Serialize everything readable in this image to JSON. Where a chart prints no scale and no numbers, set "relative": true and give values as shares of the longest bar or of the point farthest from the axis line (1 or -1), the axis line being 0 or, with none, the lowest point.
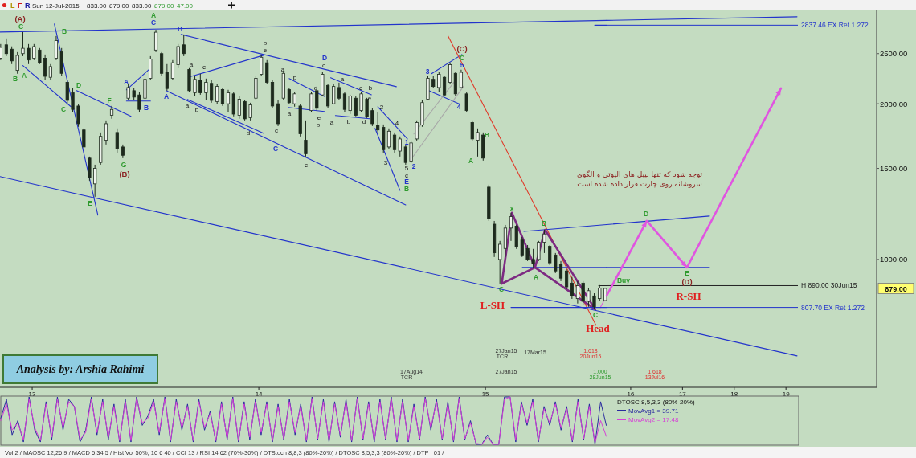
{
  "chart_data": [
    {
      "type": "candlestick",
      "log": "y",
      "xlim": [
        12.858,
        15.535
      ],
      "ylim": [
        566,
        3030
      ],
      "tick_labels": "x",
      "xticks": [
        13,
        14,
        15
      ],
      "x": [
        12.861,
        12.886,
        12.91,
        12.935,
        12.959,
        12.984,
        13.008,
        13.033,
        13.057,
        13.081,
        13.106,
        13.13,
        13.155,
        13.179,
        13.204,
        13.228,
        13.253,
        13.277,
        13.302,
        13.326,
        13.351,
        13.375,
        13.4,
        13.424,
        13.449,
        13.473,
        13.498,
        13.522,
        13.546,
        13.571,
        13.595,
        13.62,
        13.644,
        13.669,
        13.693,
        13.718,
        13.742,
        13.767,
        13.791,
        13.816,
        13.84,
        13.865,
        13.889,
        13.914,
        13.938,
        13.963,
        13.987,
        14.011,
        14.036,
        14.06,
        14.085,
        14.109,
        14.134,
        14.158,
        14.183,
        14.207,
        14.232,
        14.256,
        14.281,
        14.305,
        14.33,
        14.354,
        14.379,
        14.403,
        14.428,
        14.452,
        14.477,
        14.501,
        14.525,
        14.55,
        14.574,
        14.599,
        14.623,
        14.648,
        14.672,
        14.697,
        14.721,
        14.746,
        14.77,
        14.795,
        14.819,
        14.844,
        14.868,
        14.893,
        14.917,
        14.942,
        14.966,
        14.99,
        15.015,
        15.039,
        15.064,
        15.088,
        15.113,
        15.137,
        15.162,
        15.186,
        15.211,
        15.235,
        15.26,
        15.284,
        15.309,
        15.333,
        15.358,
        15.382,
        15.407,
        15.431,
        15.455,
        15.48,
        15.504,
        15.529
      ],
      "ohlc": [
        [
          2450,
          2609,
          2429,
          2570
        ],
        [
          2600,
          2675,
          2472,
          2500
        ],
        [
          2550,
          2582,
          2386,
          2420
        ],
        [
          2320,
          2517,
          2286,
          2480
        ],
        [
          2500,
          2752,
          2472,
          2560
        ],
        [
          2560,
          2609,
          2386,
          2430
        ],
        [
          2450,
          2609,
          2429,
          2580
        ],
        [
          2540,
          2563,
          2386,
          2400
        ],
        [
          2450,
          2490,
          2221,
          2260
        ],
        [
          2250,
          2386,
          2221,
          2360
        ],
        [
          2450,
          2704,
          2429,
          2650
        ],
        [
          2520,
          2563,
          2261,
          2290
        ],
        [
          2200,
          2221,
          1995,
          2030
        ],
        [
          2100,
          2143,
          1925,
          1950
        ],
        [
          1980,
          1995,
          1805,
          1830
        ],
        [
          1780,
          1792,
          1638,
          1650
        ],
        [
          1570,
          1581,
          1420,
          1440
        ],
        [
          1400,
          1525,
          1322,
          1500
        ],
        [
          1540,
          1760,
          1525,
          1730
        ],
        [
          1700,
          1857,
          1668,
          1830
        ],
        [
          1900,
          1981,
          1871,
          1950
        ],
        [
          1760,
          1792,
          1609,
          1640
        ],
        [
          1650,
          1668,
          1570,
          1590
        ],
        [
          2050,
          2182,
          2031,
          2150
        ],
        [
          2120,
          2143,
          2031,
          2060
        ],
        [
          2080,
          2105,
          1925,
          1950
        ],
        [
          2050,
          2261,
          2031,
          2230
        ],
        [
          2240,
          2472,
          2221,
          2440
        ],
        [
          2540,
          2780,
          2517,
          2750
        ],
        [
          2500,
          2517,
          2261,
          2290
        ],
        [
          2300,
          2386,
          2120,
          2140
        ],
        [
          2240,
          2429,
          2221,
          2400
        ],
        [
          2380,
          2609,
          2344,
          2580
        ],
        [
          2600,
          2723,
          2472,
          2500
        ],
        [
          2330,
          2344,
          2105,
          2120
        ],
        [
          2100,
          2261,
          2067,
          2230
        ],
        [
          2220,
          2286,
          2082,
          2100
        ],
        [
          2100,
          2237,
          2031,
          2200
        ],
        [
          2190,
          2221,
          2009,
          2030
        ],
        [
          2020,
          2182,
          1995,
          2160
        ],
        [
          2130,
          2143,
          1981,
          2000
        ],
        [
          2000,
          2128,
          1925,
          2100
        ],
        [
          2090,
          2105,
          1891,
          1910
        ],
        [
          1900,
          2067,
          1871,
          2040
        ],
        [
          2020,
          2031,
          1857,
          1870
        ],
        [
          1880,
          2009,
          1857,
          1990
        ],
        [
          2050,
          2261,
          2031,
          2240
        ],
        [
          2280,
          2490,
          2261,
          2460
        ],
        [
          2400,
          2429,
          2182,
          2200
        ],
        [
          2200,
          2221,
          1960,
          1980
        ],
        [
          2000,
          2031,
          1811,
          1830
        ],
        [
          2050,
          2319,
          2031,
          2290
        ],
        [
          2130,
          2143,
          1995,
          2010
        ],
        [
          2000,
          2105,
          1974,
          2090
        ],
        [
          1980,
          1995,
          1729,
          1750
        ],
        [
          1700,
          1857,
          1581,
          1600
        ],
        [
          1940,
          2105,
          1925,
          2090
        ],
        [
          2120,
          2143,
          1939,
          1960
        ],
        [
          2080,
          2302,
          2067,
          2280
        ],
        [
          2170,
          2182,
          1960,
          1980
        ],
        [
          2000,
          2182,
          1995,
          2160
        ],
        [
          2150,
          2197,
          2031,
          2050
        ],
        [
          2090,
          2105,
          1925,
          1950
        ],
        [
          1940,
          2082,
          1911,
          2070
        ],
        [
          2050,
          2067,
          1891,
          1900
        ],
        [
          1940,
          2105,
          1925,
          2090
        ],
        [
          2040,
          2053,
          1877,
          1890
        ],
        [
          1940,
          1960,
          1811,
          1830
        ],
        [
          1820,
          1925,
          1760,
          1780
        ],
        [
          1800,
          1824,
          1609,
          1630
        ],
        [
          1650,
          1792,
          1638,
          1770
        ],
        [
          1740,
          1760,
          1609,
          1630
        ],
        [
          1620,
          1729,
          1581,
          1710
        ],
        [
          1650,
          1668,
          1525,
          1540
        ],
        [
          1550,
          1698,
          1536,
          1680
        ],
        [
          1710,
          1857,
          1698,
          1840
        ],
        [
          1820,
          2031,
          1805,
          2010
        ],
        [
          2040,
          2261,
          2031,
          2240
        ],
        [
          2230,
          2261,
          2143,
          2160
        ],
        [
          2150,
          2302,
          2105,
          2280
        ],
        [
          2250,
          2261,
          2067,
          2080
        ],
        [
          2200,
          2403,
          2182,
          2380
        ],
        [
          2290,
          2302,
          2067,
          2090
        ],
        [
          2150,
          2327,
          2143,
          2300
        ],
        [
          2090,
          2105,
          1925,
          1940
        ],
        [
          1840,
          1857,
          1698,
          1710
        ],
        [
          1700,
          1792,
          1581,
          1760
        ],
        [
          1740,
          1760,
          1553,
          1570
        ],
        [
          1380,
          1395,
          1187,
          1200
        ],
        [
          1170,
          1187,
          1011,
          1030
        ],
        [
          1000,
          1086,
          898,
          1070
        ],
        [
          1050,
          1166,
          1011,
          1150
        ],
        [
          1150,
          1231,
          1086,
          1210
        ],
        [
          1160,
          1166,
          1048,
          1060
        ],
        [
          1090,
          1105,
          1011,
          1020
        ],
        [
          1050,
          1066,
          993,
          1000
        ],
        [
          1000,
          1048,
          965,
          980
        ],
        [
          1000,
          1086,
          993,
          1080
        ],
        [
          1080,
          1141,
          1029,
          1120
        ],
        [
          1060,
          1066,
          975,
          985
        ],
        [
          1020,
          1029,
          941,
          950
        ],
        [
          980,
          993,
          908,
          920
        ],
        [
          950,
          958,
          876,
          885
        ],
        [
          900,
          925,
          839,
          850
        ],
        [
          840,
          908,
          822,
          890
        ],
        [
          900,
          908,
          816,
          830
        ],
        [
          830,
          882,
          810,
          870
        ],
        [
          850,
          860,
          801,
          810
        ],
        [
          840,
          892,
          830,
          880
        ],
        [
          833,
          879,
          833,
          879
        ]
      ],
      "series": [
        {
          "type": "line",
          "color": "#2233cc",
          "x": [
            12.858,
            15.535
          ],
          "values": [
            2752,
            2899
          ]
        },
        {
          "type": "line",
          "color": "#2233cc",
          "x": [
            13.098,
            13.29
          ],
          "values": [
            2853,
            1218
          ]
        },
        {
          "type": "line",
          "color": "#2233cc",
          "x": [
            12.959,
            13.171
          ],
          "values": [
            2370,
            1974
          ]
        },
        {
          "type": "line",
          "color": "#2233cc",
          "x": [
            13.196,
            13.436
          ],
          "values": [
            2120,
            1891
          ]
        },
        {
          "type": "line",
          "color": "#2233cc",
          "x": [
            12.858,
            15.535
          ],
          "values": [
            1446,
            788
          ]
        },
        {
          "type": "line",
          "color": "#2233cc",
          "x": [
            13.416,
            13.514
          ],
          "values": [
            2128,
            2327
          ]
        },
        {
          "type": "line",
          "color": "#2233cc",
          "x": [
            13.416,
            13.522
          ],
          "values": [
            2024,
            2024
          ]
        },
        {
          "type": "line",
          "color": "#2233cc",
          "x": [
            13.657,
            14.607
          ],
          "values": [
            2723,
            2158
          ]
        },
        {
          "type": "line",
          "color": "#2233cc",
          "x": [
            13.591,
            14.648
          ],
          "values": [
            2120,
            1275
          ]
        },
        {
          "type": "line",
          "color": "#2233cc",
          "x": [
            13.693,
            14.02
          ],
          "values": [
            2253,
            2481
          ]
        },
        {
          "type": "line",
          "color": "#2233cc",
          "x": [
            13.685,
            14.02
          ],
          "values": [
            2039,
            1754
          ]
        },
        {
          "type": "line",
          "color": "#2233cc",
          "x": [
            14.134,
            14.289
          ],
          "values": [
            2237,
            2067
          ]
        },
        {
          "type": "line",
          "color": "#2233cc",
          "x": [
            14.13,
            14.289
          ],
          "values": [
            1967,
            1932
          ]
        },
        {
          "type": "line",
          "color": "#2233cc",
          "x": [
            14.317,
            14.497
          ],
          "values": [
            2245,
            2082
          ]
        },
        {
          "type": "line",
          "color": "#2233cc",
          "x": [
            14.338,
            14.489
          ],
          "values": [
            1898,
            1871
          ]
        },
        {
          "type": "line",
          "color": "#2233cc",
          "x": [
            14.525,
            14.656
          ],
          "values": [
            1974,
            1710
          ]
        },
        {
          "type": "line",
          "color": "#2233cc",
          "x": [
            14.513,
            14.623
          ],
          "values": [
            1792,
            1360
          ]
        },
        {
          "type": "line",
          "color": "#2233cc",
          "x": [
            14.762,
            14.896
          ],
          "values": [
            2286,
            2490
          ]
        },
        {
          "type": "line",
          "color": "#2233cc",
          "x": [
            14.75,
            14.888
          ],
          "values": [
            2120,
            1995
          ]
        },
        {
          "type": "line",
          "color": "#a8a8a8",
          "x": [
            14.684,
            14.868
          ],
          "values": [
            1748,
            2221
          ]
        },
        {
          "type": "line",
          "color": "#a8a8a8",
          "x": [
            14.676,
            14.905
          ],
          "values": [
            1570,
            2166
          ]
        },
        {
          "type": "line",
          "color": "#e03a2a",
          "x": [
            14.835,
            15.488
          ],
          "values": [
            2704,
            746
          ]
        },
        {
          "type": "line",
          "color": "#2233cc",
          "x": [
            15.17,
            15.535
          ],
          "values": [
            1133,
            1168
          ]
        },
        {
          "type": "line",
          "color": "#2233cc",
          "x": [
            15.163,
            15.535
          ],
          "values": [
            965,
            965
          ]
        },
        {
          "type": "line",
          "color": "#7d2a82",
          "x": [
            15.072,
            15.117,
            15.219,
            15.263,
            15.484
          ],
          "values": [
            898,
            1231,
            965,
            1141,
            801
          ]
        },
        {
          "type": "line",
          "color": "#7d2a82",
          "x": [
            15.072,
            15.219,
            15.484
          ],
          "values": [
            898,
            965,
            801
          ]
        },
        {
          "type": "line",
          "color": "#e055e0",
          "x": [
            15.507,
            15.535
          ],
          "values": [
            807,
            851
          ]
        },
        {
          "type": "line",
          "color": "#2233cc",
          "x": [
            15.113,
            15.535
          ],
          "values": [
            807.7,
            807.7
          ]
        },
        {
          "type": "line",
          "color": "#222222",
          "x": [
            15.5,
            15.535
          ],
          "values": [
            890,
            890
          ]
        },
        {
          "type": "line",
          "color": "#2233cc",
          "x": [
            15.482,
            15.535
          ],
          "values": [
            2837.46,
            2837.46
          ]
        }
      ],
      "annotations": [
        "L",
        "F",
        "R",
        "Sun 12-Jul-2015",
        "833.00",
        "879.00",
        "833.00",
        "879.00",
        "47.00",
        "Analysis by: Arshia Rahimi",
        "C",
        "B",
        "A",
        "B",
        "D",
        "C",
        "E",
        "F",
        "G",
        "A",
        "A",
        "B",
        "C",
        "B",
        "X",
        "A",
        "B",
        "C",
        "C",
        "A",
        "B",
        "C",
        "A",
        "B",
        "C",
        "D",
        "E",
        "2",
        "3",
        "4",
        "5",
        "1",
        "a",
        "c",
        "a",
        "b",
        "d",
        "b",
        "e",
        "c",
        "a",
        "b",
        "a",
        "c",
        "d",
        "e",
        "b",
        "c",
        "a",
        "a",
        "b",
        "d",
        "c",
        "b",
        "e",
        "2",
        "4",
        "3",
        "5",
        "c",
        "(A)",
        "(B)",
        "(C)",
        "L-SH",
        "Head",
        "27Jan15",
        "TCR",
        "17Mar15",
        "17Aug14",
        "TCR",
        "27Jan15",
        "1.618",
        "20Jun15",
        "1.000",
        "28Jun15"
      ]
    },
    {
      "type": "line",
      "log": "y",
      "xlim": [
        15.535,
        20.752
      ],
      "ylim": [
        566,
        3030
      ],
      "xticks": [
        16,
        17,
        18,
        19
      ],
      "yticks": [
        {
          "value": 1000,
          "label": "1000.00"
        },
        {
          "value": 1500,
          "label": "1500.00"
        },
        {
          "value": 2000,
          "label": "2000.00"
        },
        {
          "value": 2500,
          "label": "2500.00"
        }
      ],
      "series": [
        {
          "type": "line",
          "color": "#2233cc",
          "x": [
            15.535,
            19.214
          ],
          "values": [
            2899,
            2946
          ]
        },
        {
          "type": "line",
          "color": "#2233cc",
          "x": [
            15.535,
            19.214
          ],
          "values": [
            788,
            651
          ]
        },
        {
          "type": "line",
          "color": "#2233cc",
          "x": [
            15.535,
            17.522
          ],
          "values": [
            1168,
            1213
          ]
        },
        {
          "type": "line",
          "color": "#2233cc",
          "x": [
            15.535,
            17.522
          ],
          "values": [
            965,
            965
          ]
        },
        {
          "type": "line",
          "color": "#e055e0",
          "x": [
            15.535,
            16.311,
            17.087,
            18.904
          ],
          "values": [
            851,
            1187,
            965,
            2143
          ]
        }
      ],
      "ref_lines": [
        {
          "axis": "y",
          "value": 2837.46,
          "label": "2837.46 EX Ret 1.272",
          "color": "#2233cc"
        },
        {
          "axis": "y",
          "value": 890,
          "label": "H 890.00 30Jun15",
          "color": "#222222"
        },
        {
          "axis": "y",
          "value": 807.7,
          "label": "807.70 EX Ret 1.272",
          "color": "#2233cc"
        }
      ],
      "annotations": [
        "توجه شود که تنها لیبل های الیوتی و الگوی",
        "سروشانه روی چارت قرار داده شده است",
        "879.00",
        "Buy",
        "D",
        "E",
        "(D)",
        "R-SH",
        "1.618",
        "13Jul16"
      ]
    },
    {
      "type": "line",
      "title": "DTOSC 8,5,3,3 (80%-20%)",
      "relative": true,
      "legend": "top right",
      "categories": [
        null,
        null,
        null,
        null,
        null,
        null,
        null,
        null,
        null,
        null,
        null,
        null,
        null,
        null,
        null,
        null,
        null,
        null,
        null,
        null,
        null,
        null,
        null,
        null,
        null,
        null,
        null,
        null,
        null,
        null,
        null,
        null,
        null,
        null,
        null,
        null,
        null,
        null,
        null,
        null,
        null,
        null,
        null,
        null,
        null,
        null,
        null,
        null,
        null,
        null,
        null,
        null,
        null,
        null,
        null,
        null,
        null,
        null,
        null,
        null,
        null,
        null,
        null,
        null,
        null,
        null,
        null,
        null,
        null,
        null,
        null,
        null,
        null,
        null,
        null,
        null,
        null,
        null,
        null,
        null,
        null,
        null,
        null,
        null,
        null,
        null,
        null,
        null,
        null,
        null,
        null,
        null,
        null,
        null,
        null,
        null,
        null,
        null,
        null,
        null,
        null,
        null,
        null,
        null,
        null,
        null,
        null,
        null,
        null,
        null,
        null,
        null,
        null,
        null,
        null,
        null,
        null,
        null,
        null,
        null,
        null,
        null,
        null,
        null,
        null,
        null,
        null,
        null,
        null,
        null,
        null,
        null,
        null,
        null,
        null,
        null,
        null,
        null,
        null,
        null,
        null,
        null
      ],
      "series": [
        {
          "name": "MovAvg1 = 39.71",
          "color": "#2a2a9e",
          "values": [
            0.55,
            0.95,
            0.2,
            0.5,
            0.05,
            1,
            0.3,
            0.05,
            0.9,
            0.1,
            1,
            0.3,
            0.95,
            0.8,
            0.05,
            0.3,
            1,
            0.2,
            0.95,
            0.1,
            0.85,
            0.05,
            0.95,
            0.05,
            1,
            0.4,
            0.6,
            0.95,
            0.2,
            1,
            0.05,
            0.95,
            0.3,
            0.85,
            0.05,
            0.95,
            0.3,
            0.7,
            0.05,
            0.9,
            0.1,
            1,
            0.05,
            0.9,
            0.1,
            0.95,
            0.2,
            0.9,
            0.05,
            0.85,
            0.1,
            0.95,
            0.2,
            0.85,
            0.05,
            1,
            0.1,
            0.95,
            0.05,
            0.9,
            0.15,
            0.95,
            0.05,
            1,
            0.1,
            0.9,
            0.05,
            0.95,
            0.1,
            1,
            0.05,
            0.95,
            0.05,
            0.85,
            0.1,
            1,
            0.3,
            0.95,
            0.1,
            0.9,
            0.05,
            1,
            0.1,
            0.5,
            0,
            0,
            0.2,
            0,
            0,
            1,
            1,
            0.05,
            0.9,
            0.4,
            0.95,
            0.05,
            0.8,
            0.4,
            0.9,
            0.3,
            0.8,
            0.05,
            0.95,
            0.1,
            0.85,
            0,
            0.9,
            0.4,
            null,
            null,
            null,
            null,
            null,
            null,
            null,
            null,
            null,
            null,
            null,
            null,
            null,
            null,
            null,
            null,
            null,
            null,
            null,
            null,
            null,
            null,
            null,
            null,
            null,
            null,
            null,
            null,
            null,
            null,
            null,
            null,
            null,
            null
          ]
        },
        {
          "name": "MovAvg2 = 17.48",
          "color": "#d63fd6",
          "values": [
            0.5,
            0.85,
            0.3,
            0.45,
            0.1,
            0.95,
            0.35,
            0.08,
            0.85,
            0.15,
            0.95,
            0.35,
            0.9,
            0.8,
            0.1,
            0.25,
            0.95,
            0.25,
            0.9,
            0.15,
            0.8,
            0.08,
            0.9,
            0.08,
            0.97,
            0.45,
            0.55,
            0.9,
            0.25,
            0.97,
            0.08,
            0.9,
            0.35,
            0.8,
            0.08,
            0.9,
            0.35,
            0.65,
            0.08,
            0.85,
            0.12,
            0.97,
            0.08,
            0.85,
            0.15,
            0.9,
            0.25,
            0.85,
            0.08,
            0.8,
            0.12,
            0.9,
            0.25,
            0.8,
            0.08,
            0.97,
            0.12,
            0.9,
            0.08,
            0.85,
            0.2,
            0.9,
            0.08,
            0.97,
            0.12,
            0.85,
            0.08,
            0.9,
            0.12,
            0.97,
            0.08,
            0.9,
            0.08,
            0.8,
            0.12,
            0.97,
            0.35,
            0.9,
            0.12,
            0.85,
            0.08,
            0.97,
            0.12,
            0.45,
            0.02,
            0,
            0.15,
            0,
            0,
            0.95,
            1,
            0.1,
            0.85,
            0.45,
            0.9,
            0.08,
            0.75,
            0.45,
            0.85,
            0.35,
            0.75,
            0.08,
            0.9,
            0.12,
            0.8,
            0.03,
            0.5,
            0.17,
            null,
            null,
            null,
            null,
            null,
            null,
            null,
            null,
            null,
            null,
            null,
            null,
            null,
            null,
            null,
            null,
            null,
            null,
            null,
            null,
            null,
            null,
            null,
            null,
            null,
            null,
            null,
            null,
            null,
            null,
            null,
            null,
            null,
            null
          ]
        }
      ],
      "annotations": [
        "Vol 2 / MAOSC 12,26,9 / MACD 5,34,5 / Hist Vol 50%, 10 6 40 / CCI 13 / RSI 14,62 (70%-30%) / DTStoch 8,8,3 (80%-20%) / DTOSC 8,5,3,3 (80%-20%) / DTP : 01 /"
      ]
    }
  ]
}
